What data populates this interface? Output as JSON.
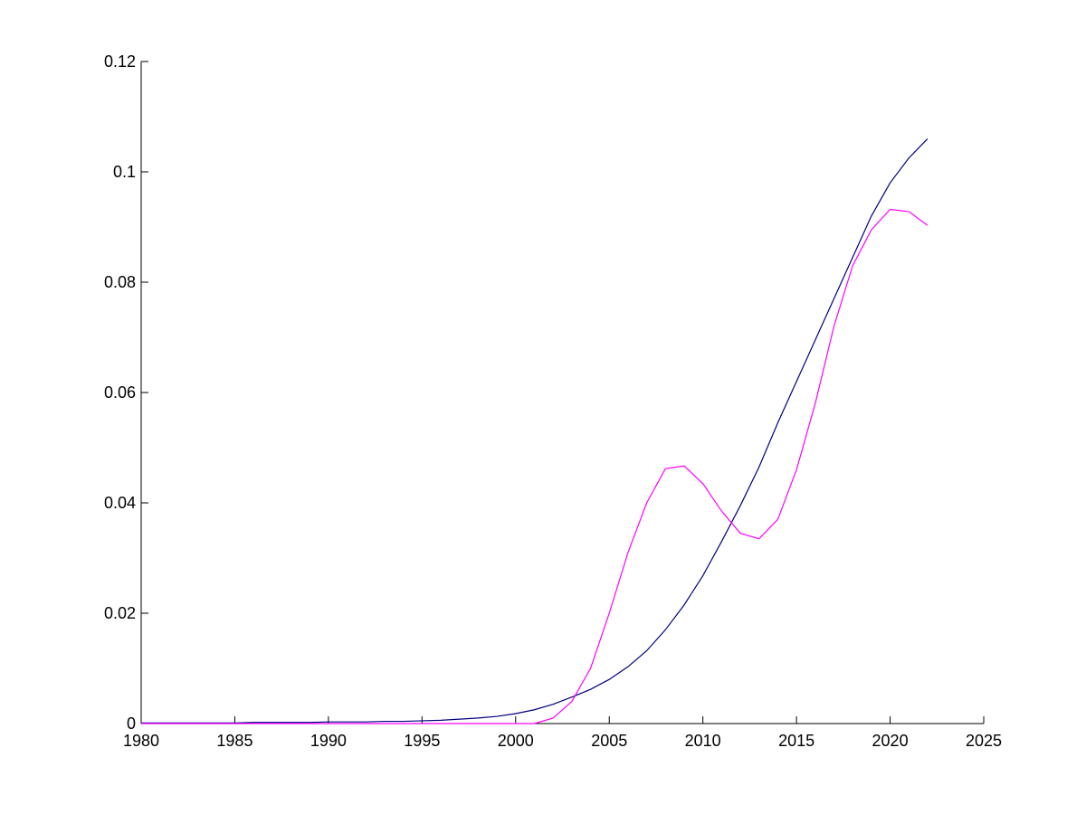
{
  "chart_data": {
    "type": "line",
    "x": [
      1980,
      1981,
      1982,
      1983,
      1984,
      1985,
      1986,
      1987,
      1988,
      1989,
      1990,
      1991,
      1992,
      1993,
      1994,
      1995,
      1996,
      1997,
      1998,
      1999,
      2000,
      2001,
      2002,
      2003,
      2004,
      2005,
      2006,
      2007,
      2008,
      2009,
      2010,
      2011,
      2012,
      2013,
      2014,
      2015,
      2016,
      2017,
      2018,
      2019,
      2020,
      2021,
      2022
    ],
    "series": [
      {
        "color": "#000080",
        "values": [
          0.0001,
          0.0001,
          0.0001,
          0.0001,
          0.0001,
          0.0001,
          0.0002,
          0.0002,
          0.0002,
          0.0002,
          0.0003,
          0.0003,
          0.0003,
          0.0004,
          0.0004,
          0.0005,
          0.0006,
          0.0008,
          0.001,
          0.0013,
          0.0018,
          0.0025,
          0.0035,
          0.0048,
          0.0062,
          0.008,
          0.0103,
          0.0132,
          0.017,
          0.0215,
          0.0268,
          0.033,
          0.0395,
          0.0465,
          0.0545,
          0.062,
          0.0695,
          0.077,
          0.0845,
          0.092,
          0.098,
          0.1025,
          0.106
        ]
      },
      {
        "color": "#ff00ff",
        "values": [
          0,
          0,
          0,
          0,
          0,
          0,
          0,
          0,
          0,
          0,
          0,
          0,
          0,
          0,
          0,
          0,
          0,
          0,
          0,
          0,
          0,
          0,
          0.001,
          0.004,
          0.01,
          0.02,
          0.031,
          0.04,
          0.0462,
          0.0467,
          0.0435,
          0.0385,
          0.0345,
          0.0335,
          0.037,
          0.046,
          0.058,
          0.072,
          0.083,
          0.0895,
          0.0932,
          0.0928,
          0.0903
        ]
      }
    ],
    "xlim": [
      1980,
      2025
    ],
    "xticks": [
      1980,
      1985,
      1990,
      1995,
      2000,
      2005,
      2010,
      2015,
      2020,
      2025
    ],
    "ylim": [
      0,
      0.12
    ],
    "yticks": [
      0,
      0.02,
      0.04,
      0.06,
      0.08,
      0.1,
      0.12
    ],
    "grid": false
  }
}
